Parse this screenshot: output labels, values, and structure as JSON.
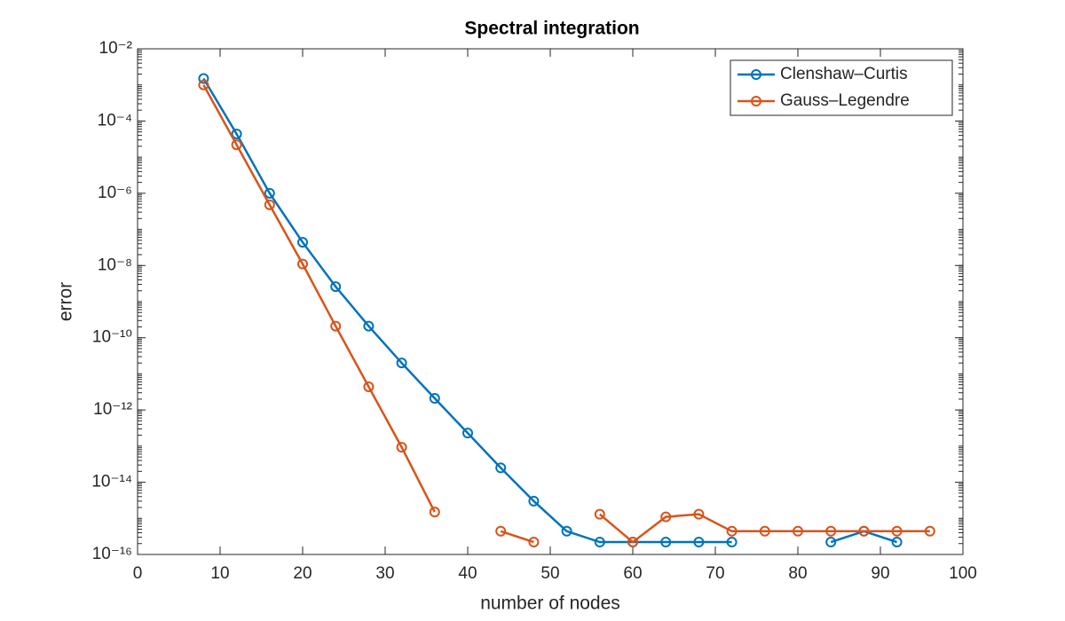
{
  "chart_data": {
    "type": "line",
    "title": "Spectral integration",
    "x_label": "number of nodes",
    "y_label": "error",
    "y_scale": "log",
    "legend_position": "northeast",
    "x": [
      8,
      12,
      16,
      20,
      24,
      28,
      32,
      36,
      40,
      44,
      48,
      52,
      56,
      60,
      64,
      68,
      72,
      76,
      80,
      84,
      88,
      92,
      96
    ],
    "series": [
      {
        "name": "Clenshaw–Curtis",
        "color": "#0072BD",
        "values": [
          0.0015,
          4.4e-05,
          1e-06,
          4.4e-08,
          2.6e-09,
          2.1e-10,
          2e-11,
          2.1e-12,
          2.3e-13,
          2.5e-14,
          3e-15,
          4.4e-16,
          2.2e-16,
          2.2e-16,
          2.2e-16,
          2.2e-16,
          2.2e-16,
          null,
          null,
          2.2e-16,
          4.4e-16,
          2.2e-16,
          null
        ]
      },
      {
        "name": "Gauss–Legendre",
        "color": "#D95319",
        "values": [
          0.001,
          2.2e-05,
          4.8e-07,
          1.1e-08,
          2.1e-10,
          4.4e-12,
          9.3e-14,
          1.5e-15,
          null,
          4.4e-16,
          2.2e-16,
          null,
          1.3e-15,
          2.2e-16,
          1.1e-15,
          1.3e-15,
          4.4e-16,
          4.4e-16,
          4.4e-16,
          4.4e-16,
          4.4e-16,
          4.4e-16,
          4.4e-16
        ]
      }
    ],
    "xlim": [
      0,
      100
    ],
    "xticks": [
      0,
      10,
      20,
      30,
      40,
      50,
      60,
      70,
      80,
      90,
      100
    ],
    "ylim": [
      1e-16,
      0.01
    ],
    "yticks": [
      {
        "value": 1e-16,
        "label": "10⁻¹⁶"
      },
      {
        "value": 1e-14,
        "label": "10⁻¹⁴"
      },
      {
        "value": 1e-12,
        "label": "10⁻¹²"
      },
      {
        "value": 1e-10,
        "label": "10⁻¹⁰"
      },
      {
        "value": 1e-08,
        "label": "10⁻⁸"
      },
      {
        "value": 1e-06,
        "label": "10⁻⁶"
      },
      {
        "value": 0.0001,
        "label": "10⁻⁴"
      },
      {
        "value": 0.01,
        "label": "10⁻²"
      }
    ],
    "grid": false
  }
}
